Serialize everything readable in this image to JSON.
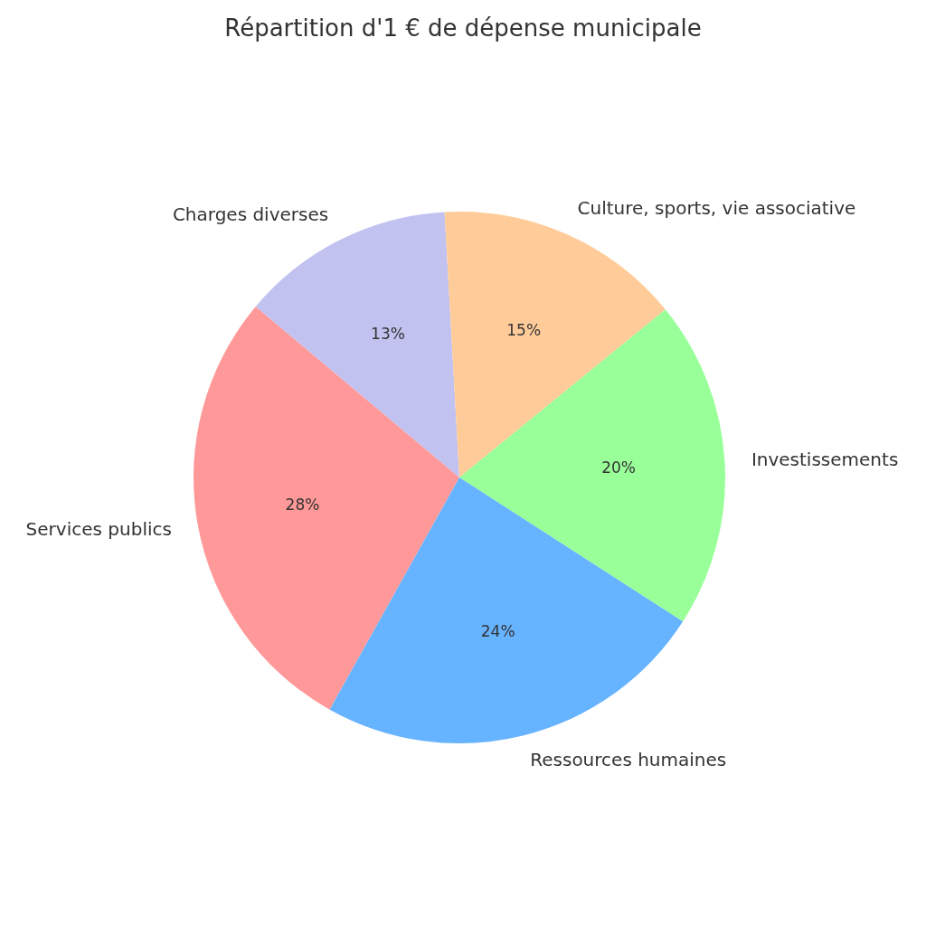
{
  "chart_data": {
    "type": "pie",
    "title": "Répartition d'1 € de dépense municipale",
    "categories": [
      "Services publics",
      "Charges diverses",
      "Culture, sports, vie associative",
      "Investissements",
      "Ressources humaines"
    ],
    "values": [
      28,
      13,
      15,
      20,
      24
    ],
    "colors": [
      "#ff9999",
      "#c2c2f0",
      "#ffcc99",
      "#99ff99",
      "#66b3ff"
    ],
    "value_labels": [
      "28%",
      "13%",
      "15%",
      "20%",
      "24%"
    ],
    "legend": false
  }
}
